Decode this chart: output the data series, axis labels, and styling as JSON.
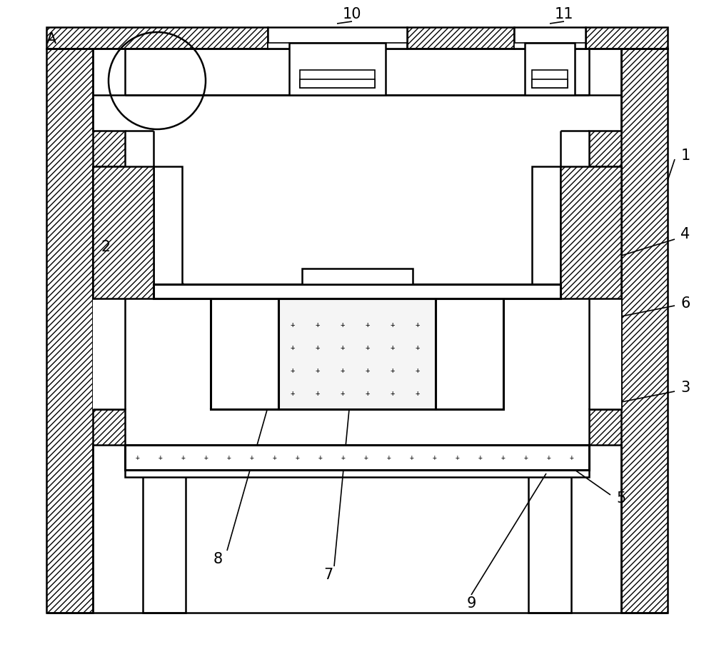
{
  "bg_color": "#ffffff",
  "line_color": "#000000",
  "figsize": [
    10.0,
    9.13
  ],
  "dpi": 100
}
